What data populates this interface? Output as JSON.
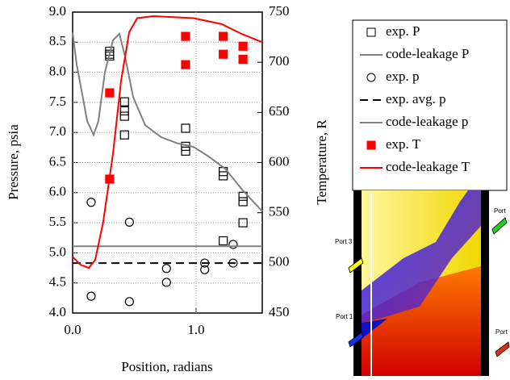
{
  "chart_data": {
    "type": "combo",
    "x_label": "Position, radians",
    "y_label": "Pressure, psia",
    "y2_label": "Temperature, R",
    "xlim": [
      0,
      1.536
    ],
    "ylim": [
      4.0,
      9.0
    ],
    "y2lim": [
      450,
      750
    ],
    "xticks": [
      {
        "value": 0,
        "label": "0.0"
      },
      {
        "value": 1,
        "label": "1.0"
      }
    ],
    "yticks": [
      {
        "value": 4,
        "label": "4.0"
      },
      {
        "value": 4.5,
        "label": "4.5"
      },
      {
        "value": 5,
        "label": "5.0"
      },
      {
        "value": 5.5,
        "label": "5.5"
      },
      {
        "value": 6,
        "label": "6.0"
      },
      {
        "value": 6.5,
        "label": "6.5"
      },
      {
        "value": 7,
        "label": "7.0"
      },
      {
        "value": 7.5,
        "label": "7.5"
      },
      {
        "value": 8,
        "label": "8.0"
      },
      {
        "value": 8.5,
        "label": "8.5"
      },
      {
        "value": 9,
        "label": "9.0"
      }
    ],
    "y2ticks": [
      450,
      500,
      550,
      600,
      650,
      700,
      750
    ],
    "grid": true,
    "legend": "right",
    "series": [
      {
        "name": "exp. P",
        "type": "scatter",
        "marker": "square",
        "fill": "none",
        "color": "#000000",
        "x": [
          0.3,
          0.3,
          0.3,
          0.42,
          0.42,
          0.42,
          0.42,
          0.915,
          0.915,
          0.915,
          1.22,
          1.22,
          1.22,
          1.38,
          1.38,
          1.38
        ],
        "values": [
          8.35,
          8.3,
          8.27,
          7.51,
          7.36,
          7.27,
          6.96,
          7.07,
          6.77,
          6.69,
          6.35,
          6.28,
          5.2,
          5.94,
          5.85,
          5.5
        ]
      },
      {
        "name": "code-leakage P",
        "type": "line",
        "color": "#808080",
        "dash": "none",
        "x": [
          0,
          0.033,
          0.118,
          0.17,
          0.209,
          0.261,
          0.327,
          0.379,
          0.425,
          0.49,
          0.588,
          0.719,
          0.85,
          0.98,
          1.11,
          1.24,
          1.373,
          1.536
        ],
        "values": [
          8.66,
          8.13,
          7.19,
          6.96,
          7.19,
          8.0,
          8.53,
          8.64,
          8.26,
          7.59,
          7.12,
          6.92,
          6.82,
          6.76,
          6.59,
          6.39,
          6.05,
          5.69
        ]
      },
      {
        "name": "exp. p",
        "type": "scatter",
        "marker": "circle",
        "fill": "none",
        "color": "#000000",
        "x": [
          0.15,
          0.15,
          0.46,
          0.46,
          0.76,
          0.76,
          1.07,
          1.07,
          1.3,
          1.3
        ],
        "values": [
          5.84,
          4.28,
          5.51,
          4.19,
          4.74,
          4.51,
          4.83,
          4.72,
          5.14,
          4.83
        ]
      },
      {
        "name": "exp. avg. p",
        "type": "line",
        "color": "#000000",
        "dash": "10,6",
        "x": [
          0,
          1.536
        ],
        "values": [
          4.83,
          4.83
        ]
      },
      {
        "name": "code-leakage p",
        "type": "line",
        "color": "#808080",
        "dash": "none",
        "x": [
          0,
          1.536
        ],
        "values": [
          5.11,
          5.11
        ]
      },
      {
        "name": "exp. T",
        "type": "scatter",
        "marker": "square",
        "fill": "#ff0000",
        "color": "#ff0000",
        "axis": "y2",
        "x": [
          0.3,
          0.3,
          0.915,
          0.915,
          1.22,
          1.22,
          1.38,
          1.38
        ],
        "values": [
          669.5,
          583.5,
          725.8,
          697.6,
          725.8,
          708,
          716,
          703
        ]
      },
      {
        "name": "code-leakage T",
        "type": "line",
        "color": "#ff0000",
        "dash": "none",
        "axis": "y2",
        "x": [
          0,
          0.065,
          0.131,
          0.183,
          0.248,
          0.327,
          0.392,
          0.458,
          0.523,
          0.654,
          0.98,
          1.209,
          1.373,
          1.536
        ],
        "values": [
          506,
          498,
          495,
          503,
          541,
          609,
          681,
          730,
          744,
          746,
          744,
          738,
          728,
          720
        ]
      }
    ]
  },
  "image_labels": [
    "Port 3",
    "Port 1",
    "Port",
    "Port"
  ]
}
